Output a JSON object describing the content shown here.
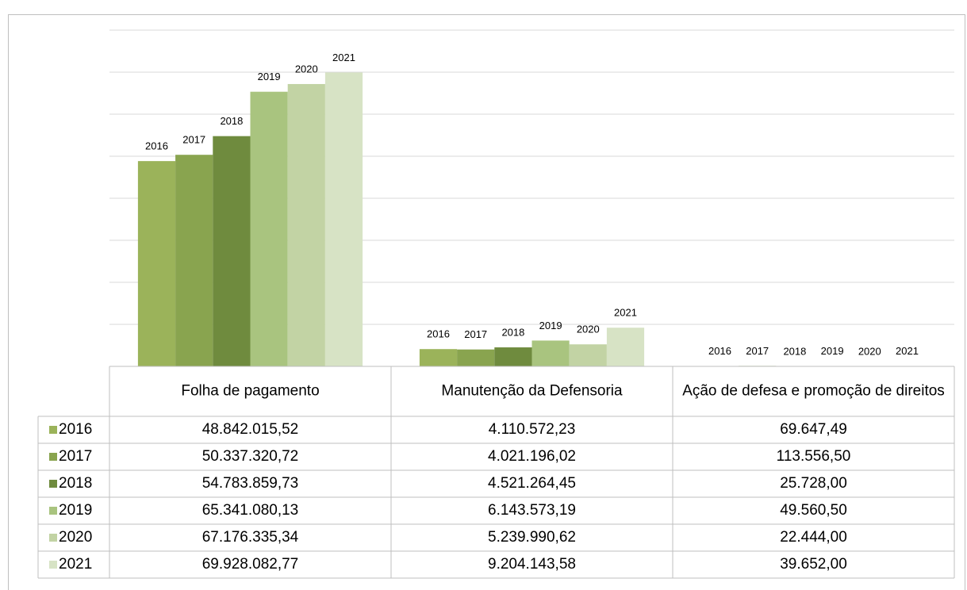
{
  "chart_data": {
    "type": "bar",
    "categories": [
      "Folha de pagamento",
      "Manutenção da Defensoria",
      "Ação de defesa e promoção de direitos"
    ],
    "series": [
      {
        "name": "2016",
        "color": "#9bb35a",
        "values": [
          48842015.52,
          4110572.23,
          69647.49
        ],
        "value_labels": [
          "48.842.015,52",
          "4.110.572,23",
          "69.647,49"
        ]
      },
      {
        "name": "2017",
        "color": "#89a44f",
        "values": [
          50337320.72,
          4021196.02,
          113556.5
        ],
        "value_labels": [
          "50.337.320,72",
          "4.021.196,02",
          "113.556,50"
        ]
      },
      {
        "name": "2018",
        "color": "#6f8b3e",
        "values": [
          54783859.73,
          4521264.45,
          25728.0
        ],
        "value_labels": [
          "54.783.859,73",
          "4.521.264,45",
          "25.728,00"
        ]
      },
      {
        "name": "2019",
        "color": "#a9c47f",
        "values": [
          65341080.13,
          6143573.19,
          49560.5
        ],
        "value_labels": [
          "65.341.080,13",
          "6.143.573,19",
          "49.560,50"
        ]
      },
      {
        "name": "2020",
        "color": "#c2d3a4",
        "values": [
          67176335.34,
          5239990.62,
          22444.0
        ],
        "value_labels": [
          "67.176.335,34",
          "5.239.990,62",
          "22.444,00"
        ]
      },
      {
        "name": "2021",
        "color": "#d7e3c5",
        "values": [
          69928082.77,
          9204143.58,
          39652.0
        ],
        "value_labels": [
          "69.928.082,77",
          "9.204.143,58",
          "39.652,00"
        ]
      }
    ],
    "ylim": [
      0,
      80000000
    ],
    "yticks": [
      0,
      10000000,
      20000000,
      30000000,
      40000000,
      50000000,
      60000000,
      70000000,
      80000000
    ],
    "grid": true
  }
}
